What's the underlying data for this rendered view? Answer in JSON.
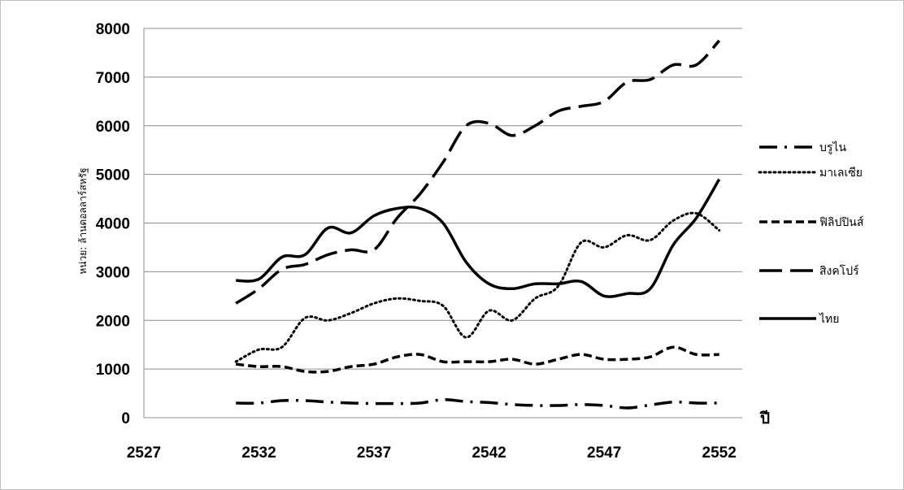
{
  "chart_data": {
    "type": "line",
    "title": "",
    "xlabel": "ปี",
    "ylabel": "หน่วย: ล้านดอลลาร์สหรัฐ",
    "xlim": [
      2527,
      2553
    ],
    "ylim": [
      0,
      8000
    ],
    "x_ticks": [
      "2527",
      "2532",
      "2537",
      "2542",
      "2547",
      "2552"
    ],
    "y_ticks": [
      "0",
      "1000",
      "2000",
      "3000",
      "4000",
      "5000",
      "6000",
      "7000",
      "8000"
    ],
    "grid": "horizontal",
    "legend_position": "right",
    "x": [
      2531,
      2532,
      2533,
      2534,
      2535,
      2536,
      2537,
      2538,
      2539,
      2540,
      2541,
      2542,
      2543,
      2544,
      2545,
      2546,
      2547,
      2548,
      2549,
      2550,
      2551,
      2552
    ],
    "series": [
      {
        "name": "บรูไน",
        "dash": "long-dash-dot",
        "values": [
          300,
          300,
          350,
          350,
          320,
          300,
          290,
          290,
          300,
          370,
          330,
          310,
          270,
          250,
          250,
          270,
          250,
          200,
          260,
          320,
          300,
          300
        ]
      },
      {
        "name": "มาเลเซีย",
        "dash": "dot",
        "values": [
          1150,
          1400,
          1450,
          2050,
          2000,
          2150,
          2350,
          2450,
          2400,
          2300,
          1650,
          2200,
          2000,
          2450,
          2700,
          3600,
          3500,
          3750,
          3650,
          4050,
          4200,
          3850
        ]
      },
      {
        "name": "ฟิลิปปินส์",
        "dash": "short-dash",
        "values": [
          1100,
          1050,
          1050,
          950,
          950,
          1050,
          1100,
          1250,
          1300,
          1150,
          1150,
          1150,
          1200,
          1100,
          1200,
          1300,
          1200,
          1200,
          1250,
          1450,
          1300,
          1300
        ]
      },
      {
        "name": "สิงคโปร์",
        "dash": "long-dash",
        "values": [
          2350,
          2650,
          3050,
          3150,
          3350,
          3450,
          3450,
          4100,
          4600,
          5250,
          6000,
          6050,
          5800,
          6000,
          6300,
          6400,
          6500,
          6900,
          6950,
          7250,
          7250,
          7750
        ]
      },
      {
        "name": "ไทย",
        "dash": "solid",
        "values": [
          2820,
          2850,
          3300,
          3350,
          3900,
          3800,
          4150,
          4300,
          4300,
          4000,
          3200,
          2750,
          2650,
          2750,
          2750,
          2800,
          2500,
          2550,
          2650,
          3550,
          4100,
          4900
        ]
      }
    ]
  }
}
